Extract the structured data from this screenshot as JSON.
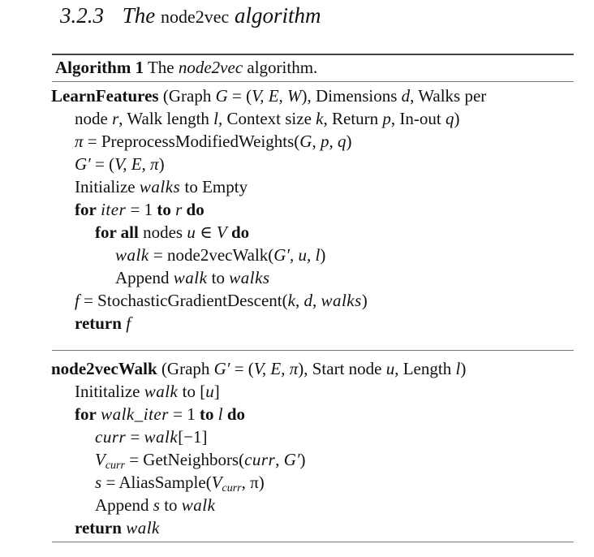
{
  "section": {
    "number": "3.2.3",
    "title_pre": "The",
    "title_code": "node2vec",
    "title_post": "algorithm"
  },
  "algorithm": {
    "label": "Algorithm 1",
    "caption_pre": "The",
    "caption_name": "node2vec",
    "caption_post": "algorithm."
  },
  "learn_features": {
    "name": "LearnFeatures",
    "sig_a": "(Graph",
    "sig_b": "G",
    "sig_c": " = (",
    "sig_d": "V, E, W",
    "sig_e": "), Dimensions",
    "sig_f": "d",
    "sig_g": ", Walks per",
    "sig2_a": "node",
    "sig2_b": "r",
    "sig2_c": ", Walk length",
    "sig2_d": "l",
    "sig2_e": ", Context size",
    "sig2_f": "k",
    "sig2_g": ", Return",
    "sig2_h": "p",
    "sig2_i": ", In-out",
    "sig2_j": "q",
    "sig2_k": ")",
    "l3_a": "π",
    "l3_b": " = PreprocessModifiedWeights(",
    "l3_c": "G, p, q",
    "l3_d": ")",
    "l4_a": "G′",
    "l4_b": " = (",
    "l4_c": "V, E, π",
    "l4_d": ")",
    "l5_a": "Initialize",
    "l5_b": "walks",
    "l5_c": "to Empty",
    "l6_for": "for",
    "l6_a": "iter",
    "l6_b": " = 1",
    "l6_to": "to",
    "l6_c": "r",
    "l6_do": "do",
    "l7_for": "for all",
    "l7_a": "nodes",
    "l7_b": "u ∈ V",
    "l7_do": "do",
    "l8_a": "walk",
    "l8_b": " = node2vecWalk(",
    "l8_c": "G′, u, l",
    "l8_d": ")",
    "l9_a": "Append",
    "l9_b": "walk",
    "l9_c": "to",
    "l9_d": "walks",
    "l10_a": "f",
    "l10_b": " = StochasticGradientDescent(",
    "l10_c": "k",
    "l10_d": ",",
    "l10_e": "d",
    "l10_f": ",",
    "l10_g": "walks",
    "l10_h": ")",
    "l11_ret": "return",
    "l11_a": "f"
  },
  "walk": {
    "name": "node2vecWalk",
    "sig_a": "(Graph",
    "sig_b": "G′",
    "sig_c": " = (",
    "sig_d": "V, E, π",
    "sig_e": "), Start node",
    "sig_f": "u",
    "sig_g": ", Length",
    "sig_h": "l",
    "sig_i": ")",
    "l2_a": "Inititalize",
    "l2_b": "walk",
    "l2_c": "to [",
    "l2_d": "u",
    "l2_e": "]",
    "l3_for": "for",
    "l3_a": "walk_iter",
    "l3_b": " = 1",
    "l3_to": "to",
    "l3_c": "l",
    "l3_do": "do",
    "l4_a": "curr",
    "l4_b": " =",
    "l4_c": "walk",
    "l4_d": "[−1]",
    "l5_a": "V",
    "l5_sub": "curr",
    "l5_b": " = GetNeighbors(",
    "l5_c": "curr",
    "l5_d": ",",
    "l5_e": "G′",
    "l5_f": ")",
    "l6_a": "s",
    "l6_b": " = AliasSample(",
    "l6_c": "V",
    "l6_sub": "curr",
    "l6_d": ", π)",
    "l7_a": "Append",
    "l7_b": "s",
    "l7_c": "to",
    "l7_d": "walk",
    "l8_ret": "return",
    "l8_a": "walk"
  }
}
